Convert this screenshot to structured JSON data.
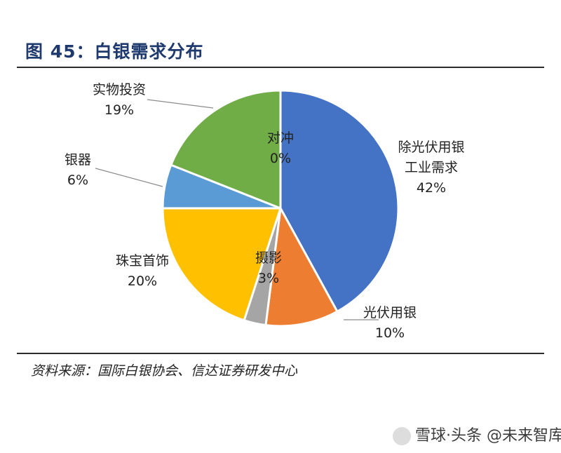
{
  "figure": {
    "title": "图 45：白银需求分布",
    "source": "资料来源：国际白银协会、信达证券研发中心",
    "watermark": "雪球·头条 @未来智库"
  },
  "chart_data": {
    "type": "pie",
    "title": "图 45：白银需求分布",
    "legend": "none",
    "slices": [
      {
        "label_lines": [
          "除光伏用银",
          "工业需求"
        ],
        "percent_label": "42%",
        "value": 42,
        "color": "#4472C4"
      },
      {
        "label_lines": [
          "光伏用银"
        ],
        "percent_label": "10%",
        "value": 10,
        "color": "#ED7D31"
      },
      {
        "label_lines": [
          "摄影"
        ],
        "percent_label": "3%",
        "value": 3,
        "color": "#A5A5A5"
      },
      {
        "label_lines": [
          "珠宝首饰"
        ],
        "percent_label": "20%",
        "value": 20,
        "color": "#FFC000"
      },
      {
        "label_lines": [
          "银器"
        ],
        "percent_label": "6%",
        "value": 6,
        "color": "#5B9BD5"
      },
      {
        "label_lines": [
          "实物投资"
        ],
        "percent_label": "19%",
        "value": 19,
        "color": "#70AD47"
      },
      {
        "label_lines": [
          "对冲"
        ],
        "percent_label": "0%",
        "value": 0,
        "color": "#264478"
      }
    ]
  }
}
